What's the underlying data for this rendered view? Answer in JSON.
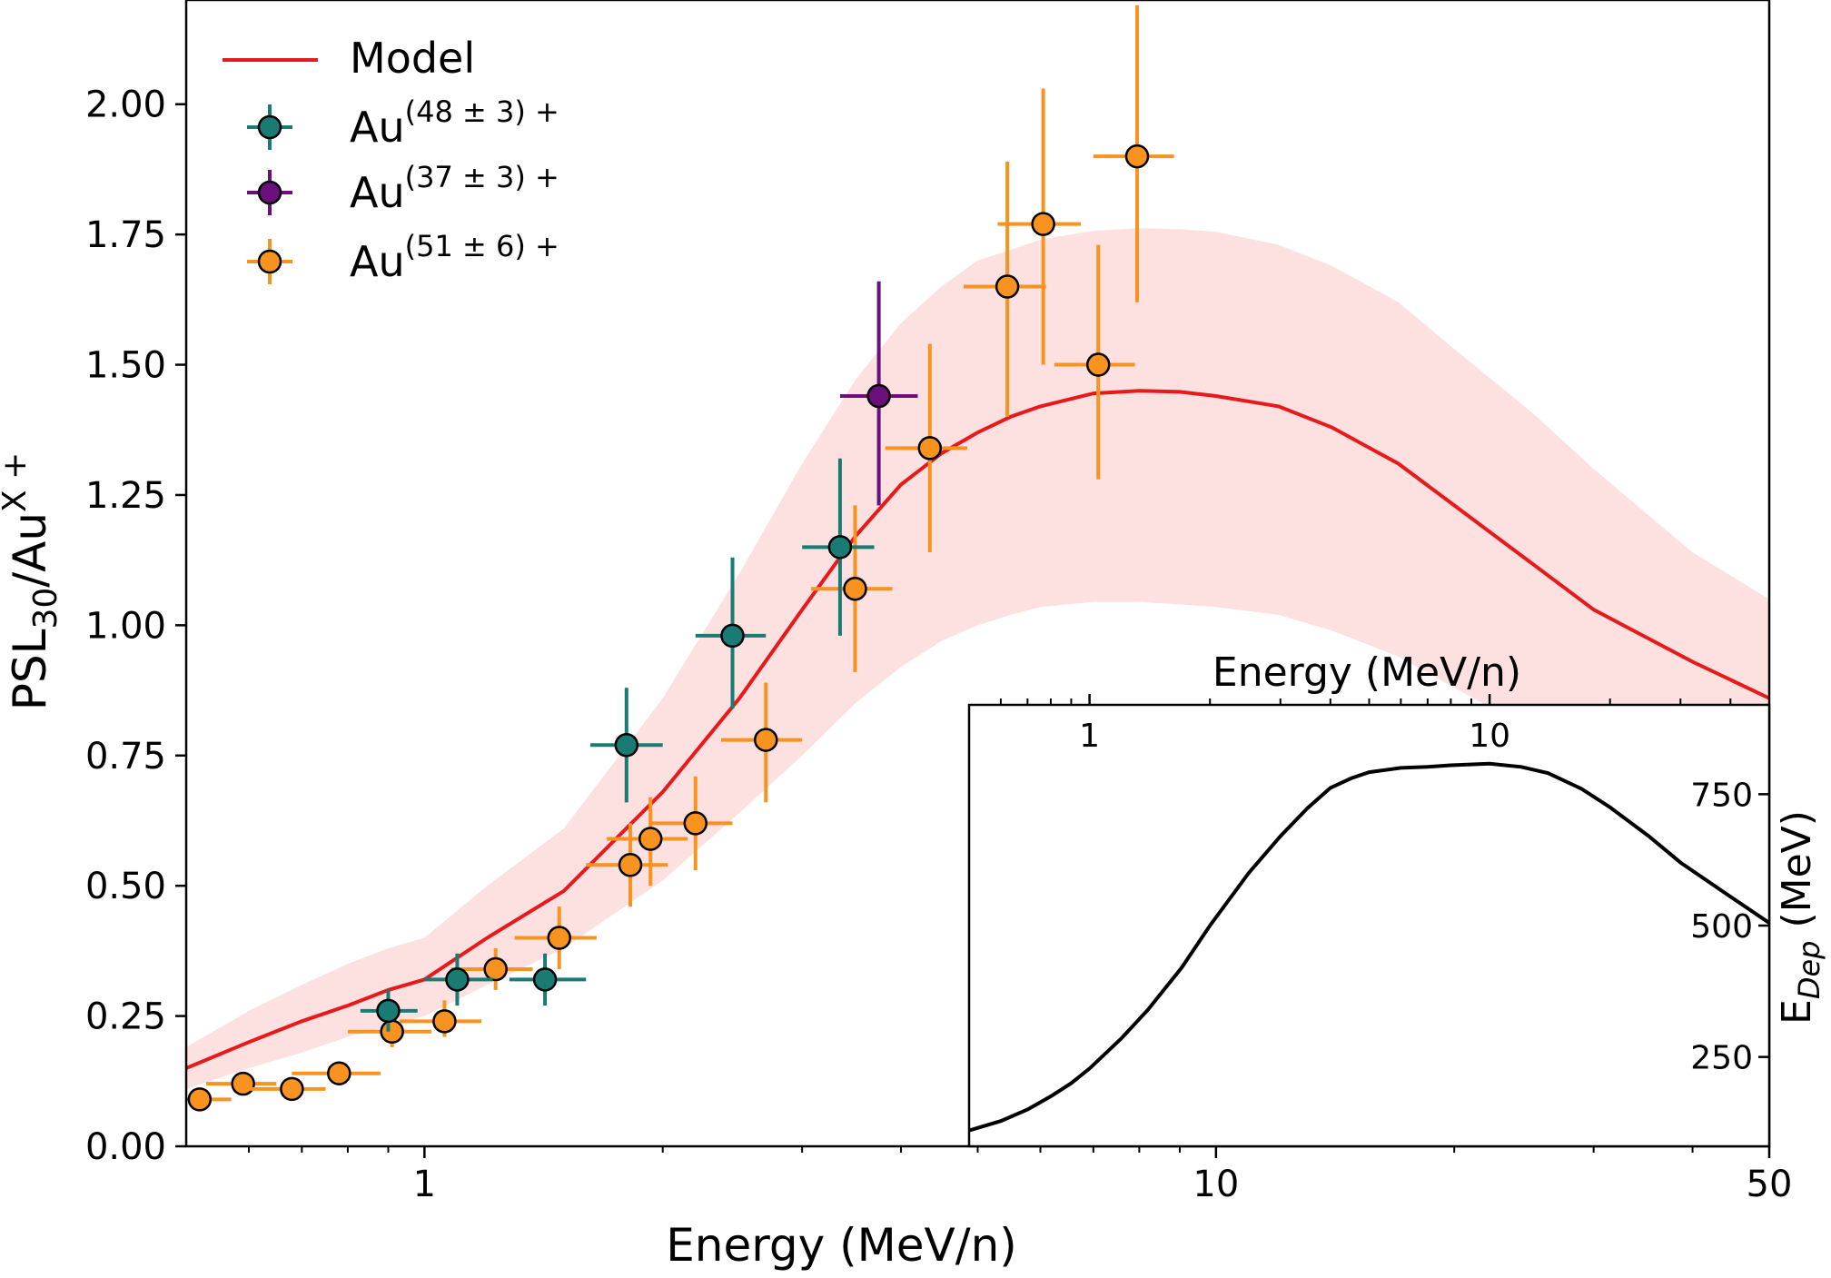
{
  "chart_data": [
    {
      "type": "scatter",
      "xscale": "log",
      "xlim": [
        0.5,
        50
      ],
      "ylim": [
        0.0,
        2.2
      ],
      "xlabel": "Energy (MeV/n)",
      "ylabel": "PSL<sub>30</sub>/Au<sup>X+</sup>",
      "ylabel_parts": {
        "base": "PSL",
        "sub": "30",
        "mid": "/Au",
        "sup": "X +"
      },
      "x_ticks": [
        1,
        10,
        50
      ],
      "x_tick_labels": [
        "1",
        "10",
        "50"
      ],
      "y_ticks": [
        0.0,
        0.25,
        0.5,
        0.75,
        1.0,
        1.25,
        1.5,
        1.75,
        2.0
      ],
      "y_tick_labels": [
        "0.00",
        "0.25",
        "0.50",
        "0.75",
        "1.00",
        "1.25",
        "1.50",
        "1.75",
        "2.00"
      ],
      "grid": false,
      "legend_position": "top-left",
      "model": {
        "name": "Model",
        "color": "#e8191b",
        "band_color": "#fde0e0",
        "x": [
          0.5,
          0.6,
          0.7,
          0.8,
          0.9,
          1.0,
          1.2,
          1.5,
          2.0,
          2.5,
          3.0,
          3.5,
          4.0,
          4.5,
          5.0,
          5.5,
          6.0,
          7.0,
          8.0,
          9.0,
          10.0,
          12.0,
          14.0,
          17.0,
          20.0,
          25.0,
          30.0,
          40.0,
          50.0
        ],
        "y": [
          0.15,
          0.2,
          0.24,
          0.27,
          0.3,
          0.32,
          0.4,
          0.49,
          0.68,
          0.86,
          1.03,
          1.17,
          1.27,
          1.33,
          1.37,
          1.4,
          1.42,
          1.445,
          1.45,
          1.448,
          1.44,
          1.42,
          1.38,
          1.31,
          1.23,
          1.12,
          1.03,
          0.93,
          0.86
        ],
        "y_low": [
          0.11,
          0.15,
          0.18,
          0.21,
          0.23,
          0.25,
          0.31,
          0.38,
          0.51,
          0.64,
          0.75,
          0.85,
          0.92,
          0.97,
          1.0,
          1.02,
          1.035,
          1.045,
          1.045,
          1.04,
          1.035,
          1.02,
          0.99,
          0.94,
          0.88,
          0.8,
          0.74,
          0.66,
          0.6
        ],
        "y_high": [
          0.19,
          0.26,
          0.31,
          0.35,
          0.38,
          0.4,
          0.5,
          0.61,
          0.86,
          1.1,
          1.31,
          1.47,
          1.58,
          1.65,
          1.7,
          1.72,
          1.74,
          1.757,
          1.762,
          1.76,
          1.755,
          1.73,
          1.69,
          1.62,
          1.53,
          1.41,
          1.3,
          1.14,
          1.05
        ]
      },
      "series": [
        {
          "name": "Au(48 ± 3) +",
          "name_parts": {
            "base": "Au",
            "sup": "(48 ± 3) +"
          },
          "color": "#1a7b74",
          "points": [
            {
              "x": 0.9,
              "y": 0.26,
              "xlo": 0.83,
              "xhi": 0.98,
              "ylo": 0.22,
              "yhi": 0.3
            },
            {
              "x": 1.1,
              "y": 0.32,
              "xlo": 1.0,
              "xhi": 1.22,
              "ylo": 0.27,
              "yhi": 0.37
            },
            {
              "x": 1.42,
              "y": 0.32,
              "xlo": 1.28,
              "xhi": 1.6,
              "ylo": 0.27,
              "yhi": 0.37
            },
            {
              "x": 1.8,
              "y": 0.77,
              "xlo": 1.62,
              "xhi": 2.0,
              "ylo": 0.66,
              "yhi": 0.88
            },
            {
              "x": 2.45,
              "y": 0.98,
              "xlo": 2.2,
              "xhi": 2.7,
              "ylo": 0.84,
              "yhi": 1.13
            },
            {
              "x": 3.35,
              "y": 1.15,
              "xlo": 3.0,
              "xhi": 3.7,
              "ylo": 0.98,
              "yhi": 1.32
            }
          ]
        },
        {
          "name": "Au(37 ± 3) +",
          "name_parts": {
            "base": "Au",
            "sup": "(37 ± 3) +"
          },
          "color": "#6b0f7c",
          "points": [
            {
              "x": 3.75,
              "y": 1.44,
              "xlo": 3.35,
              "xhi": 4.2,
              "ylo": 1.23,
              "yhi": 1.66
            }
          ]
        },
        {
          "name": "Au(51 ± 6) +",
          "name_parts": {
            "base": "Au",
            "sup": "(51 ± 6) +"
          },
          "color": "#f7931e",
          "points": [
            {
              "x": 0.52,
              "y": 0.09,
              "xlo": 0.5,
              "xhi": 0.57,
              "ylo": 0.07,
              "yhi": 0.11
            },
            {
              "x": 0.59,
              "y": 0.12,
              "xlo": 0.53,
              "xhi": 0.65,
              "ylo": 0.1,
              "yhi": 0.14
            },
            {
              "x": 0.68,
              "y": 0.11,
              "xlo": 0.6,
              "xhi": 0.75,
              "ylo": 0.09,
              "yhi": 0.13
            },
            {
              "x": 0.78,
              "y": 0.14,
              "xlo": 0.68,
              "xhi": 0.88,
              "ylo": 0.12,
              "yhi": 0.16
            },
            {
              "x": 0.91,
              "y": 0.22,
              "xlo": 0.8,
              "xhi": 1.02,
              "ylo": 0.19,
              "yhi": 0.25
            },
            {
              "x": 1.06,
              "y": 0.24,
              "xlo": 0.93,
              "xhi": 1.18,
              "ylo": 0.21,
              "yhi": 0.28
            },
            {
              "x": 1.23,
              "y": 0.34,
              "xlo": 1.08,
              "xhi": 1.37,
              "ylo": 0.3,
              "yhi": 0.38
            },
            {
              "x": 1.48,
              "y": 0.4,
              "xlo": 1.3,
              "xhi": 1.65,
              "ylo": 0.34,
              "yhi": 0.46
            },
            {
              "x": 1.82,
              "y": 0.54,
              "xlo": 1.6,
              "xhi": 2.03,
              "ylo": 0.46,
              "yhi": 0.62
            },
            {
              "x": 1.93,
              "y": 0.59,
              "xlo": 1.7,
              "xhi": 2.15,
              "ylo": 0.5,
              "yhi": 0.67
            },
            {
              "x": 2.2,
              "y": 0.62,
              "xlo": 1.93,
              "xhi": 2.45,
              "ylo": 0.53,
              "yhi": 0.71
            },
            {
              "x": 2.7,
              "y": 0.78,
              "xlo": 2.37,
              "xhi": 3.0,
              "ylo": 0.66,
              "yhi": 0.89
            },
            {
              "x": 3.5,
              "y": 1.07,
              "xlo": 3.08,
              "xhi": 3.9,
              "ylo": 0.91,
              "yhi": 1.23
            },
            {
              "x": 4.35,
              "y": 1.34,
              "xlo": 3.82,
              "xhi": 4.85,
              "ylo": 1.14,
              "yhi": 1.54
            },
            {
              "x": 5.45,
              "y": 1.65,
              "xlo": 4.8,
              "xhi": 6.1,
              "ylo": 1.4,
              "yhi": 1.89
            },
            {
              "x": 6.05,
              "y": 1.77,
              "xlo": 5.3,
              "xhi": 6.75,
              "ylo": 1.5,
              "yhi": 2.03
            },
            {
              "x": 7.1,
              "y": 1.5,
              "xlo": 6.25,
              "xhi": 7.9,
              "ylo": 1.28,
              "yhi": 1.73
            },
            {
              "x": 7.95,
              "y": 1.9,
              "xlo": 7.0,
              "xhi": 8.85,
              "ylo": 1.62,
              "yhi": 2.19
            }
          ]
        }
      ]
    },
    {
      "type": "line",
      "xscale": "log",
      "xlim": [
        0.5,
        50
      ],
      "ylim": [
        80,
        920
      ],
      "xlabel": "Energy (MeV/n)",
      "xaxis_position": "top",
      "ylabel_parts": {
        "base": "E",
        "sub": "Dep",
        "rest": " (MeV)"
      },
      "yaxis_position": "right",
      "x_ticks": [
        1,
        10
      ],
      "x_tick_labels": [
        "1",
        "10"
      ],
      "y_ticks": [
        250,
        500,
        750
      ],
      "y_tick_labels": [
        "250",
        "500",
        "750"
      ],
      "grid": false,
      "color": "#000000",
      "x": [
        0.5,
        0.6,
        0.7,
        0.8,
        0.9,
        1.0,
        1.2,
        1.4,
        1.7,
        2.0,
        2.5,
        3.0,
        3.5,
        4.0,
        4.5,
        5.0,
        6.0,
        7.0,
        8.0,
        10.0,
        12.0,
        14.0,
        17.0,
        20.0,
        25.0,
        30.0,
        40.0,
        50.0
      ],
      "y": [
        110,
        128,
        150,
        175,
        200,
        228,
        285,
        340,
        420,
        500,
        600,
        670,
        723,
        762,
        780,
        792,
        800,
        802,
        805,
        808,
        802,
        790,
        760,
        725,
        670,
        620,
        555,
        505
      ]
    }
  ]
}
